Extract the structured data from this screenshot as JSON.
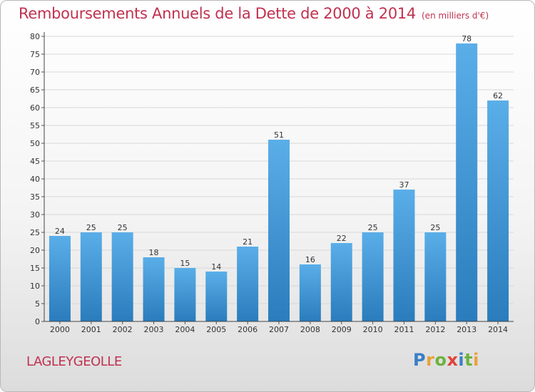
{
  "chart_data": {
    "type": "bar",
    "title": "Remboursements Annuels de la Dette de 2000 à 2014",
    "subtitle": "(en milliers d'€)",
    "categories": [
      "2000",
      "2001",
      "2002",
      "2003",
      "2004",
      "2005",
      "2006",
      "2007",
      "2008",
      "2009",
      "2010",
      "2011",
      "2012",
      "2013",
      "2014"
    ],
    "values": [
      24,
      25,
      25,
      18,
      15,
      14,
      21,
      51,
      16,
      22,
      25,
      37,
      25,
      78,
      62
    ],
    "ylim": [
      0,
      80
    ],
    "yticks": [
      0,
      5,
      10,
      15,
      20,
      25,
      30,
      35,
      40,
      45,
      50,
      55,
      60,
      65,
      70,
      75,
      80
    ],
    "grid": true,
    "bar_color_top": "#5aaee8",
    "bar_color_bottom": "#2a7cbc"
  },
  "footer": {
    "commune": "LAGLEYGEOLLE"
  },
  "logo": {
    "letters": [
      "P",
      "r",
      "o",
      "x",
      "i",
      "t",
      "i"
    ],
    "colors": [
      "#3a7fc4",
      "#e8a23a",
      "#6db33f",
      "#e0433a",
      "#3a7fc4",
      "#6db33f",
      "#e8a23a"
    ]
  },
  "colors": {
    "title": "#c0314f",
    "grid": "#d8d8d8"
  }
}
